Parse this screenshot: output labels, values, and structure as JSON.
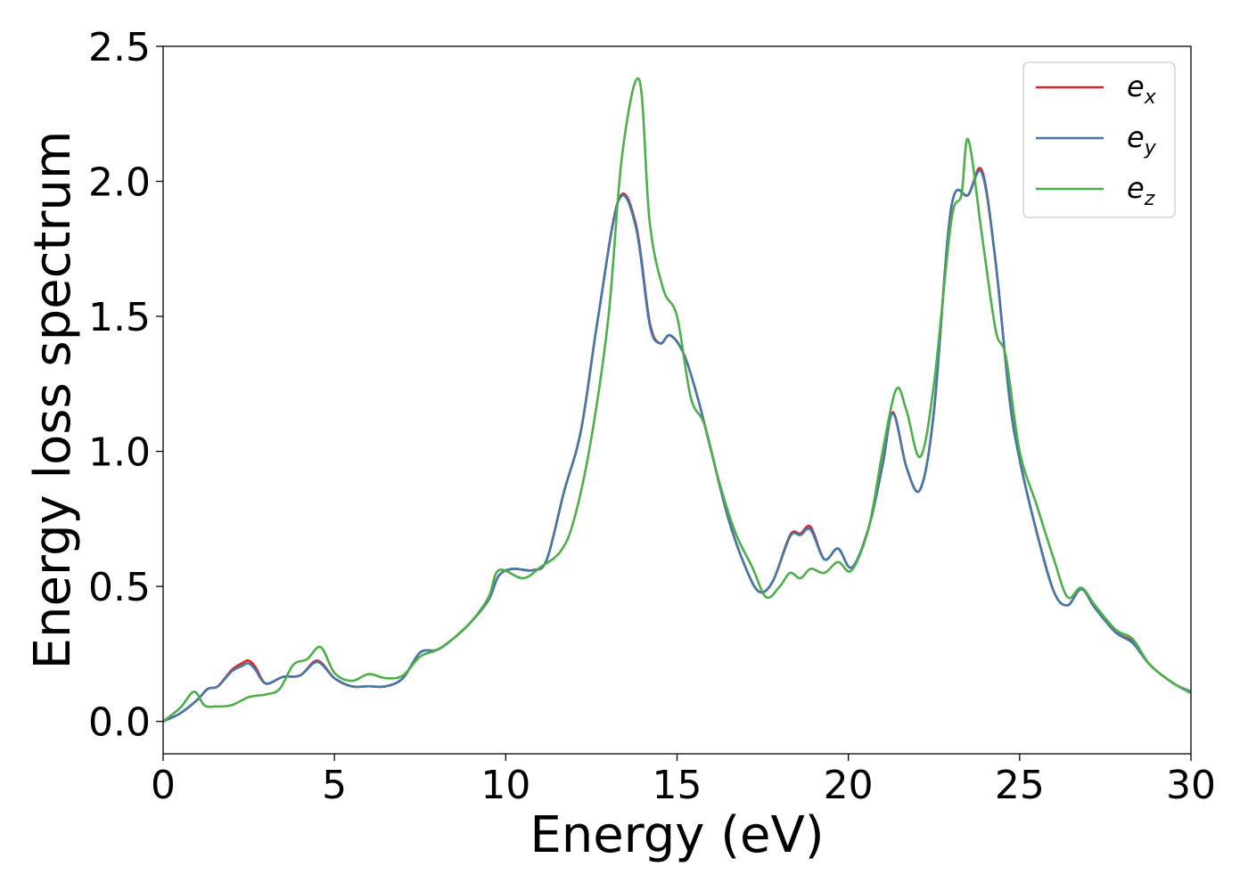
{
  "chart_data": {
    "type": "line",
    "xlabel": "Energy (eV)",
    "ylabel": "Energy loss spectrum",
    "xlim": [
      0,
      30
    ],
    "ylim": [
      -0.12,
      2.5
    ],
    "xticks": [
      0,
      5,
      10,
      15,
      20,
      25,
      30
    ],
    "xtick_labels": [
      "0",
      "5",
      "10",
      "15",
      "20",
      "25",
      "30"
    ],
    "yticks": [
      0.0,
      0.5,
      1.0,
      1.5,
      2.0,
      2.5
    ],
    "ytick_labels": [
      "0.0",
      "0.5",
      "1.0",
      "1.5",
      "2.0",
      "2.5"
    ],
    "grid": false,
    "legend_position": "top-right",
    "series": [
      {
        "name": "e",
        "subscript": "x",
        "color": "#d62728",
        "points": [
          [
            0,
            0
          ],
          [
            0.5,
            0.03
          ],
          [
            1,
            0.08
          ],
          [
            1.3,
            0.12
          ],
          [
            1.6,
            0.13
          ],
          [
            2,
            0.19
          ],
          [
            2.3,
            0.215
          ],
          [
            2.5,
            0.225
          ],
          [
            2.7,
            0.2
          ],
          [
            3,
            0.14
          ],
          [
            3.5,
            0.165
          ],
          [
            4,
            0.17
          ],
          [
            4.5,
            0.225
          ],
          [
            5,
            0.16
          ],
          [
            5.5,
            0.13
          ],
          [
            6,
            0.13
          ],
          [
            6.5,
            0.13
          ],
          [
            7,
            0.16
          ],
          [
            7.5,
            0.255
          ],
          [
            8,
            0.265
          ],
          [
            8.5,
            0.31
          ],
          [
            9,
            0.37
          ],
          [
            9.5,
            0.45
          ],
          [
            9.8,
            0.54
          ],
          [
            10.2,
            0.565
          ],
          [
            10.8,
            0.56
          ],
          [
            11.2,
            0.6
          ],
          [
            11.7,
            0.85
          ],
          [
            12.2,
            1.08
          ],
          [
            12.7,
            1.5
          ],
          [
            13.3,
            1.935
          ],
          [
            13.8,
            1.84
          ],
          [
            14.2,
            1.48
          ],
          [
            14.5,
            1.4
          ],
          [
            14.8,
            1.43
          ],
          [
            15.2,
            1.36
          ],
          [
            15.6,
            1.2
          ],
          [
            16,
            1.0
          ],
          [
            16.5,
            0.75
          ],
          [
            17,
            0.57
          ],
          [
            17.4,
            0.48
          ],
          [
            17.8,
            0.52
          ],
          [
            18.3,
            0.69
          ],
          [
            18.6,
            0.695
          ],
          [
            18.9,
            0.72
          ],
          [
            19.3,
            0.6
          ],
          [
            19.7,
            0.64
          ],
          [
            20.1,
            0.57
          ],
          [
            20.6,
            0.72
          ],
          [
            21,
            0.95
          ],
          [
            21.3,
            1.145
          ],
          [
            21.7,
            0.94
          ],
          [
            22.1,
            0.86
          ],
          [
            22.5,
            1.15
          ],
          [
            23,
            1.9
          ],
          [
            23.5,
            1.95
          ],
          [
            23.9,
            2.04
          ],
          [
            24.3,
            1.7
          ],
          [
            24.7,
            1.2
          ],
          [
            25,
            0.97
          ],
          [
            25.5,
            0.7
          ],
          [
            26,
            0.48
          ],
          [
            26.4,
            0.43
          ],
          [
            26.8,
            0.49
          ],
          [
            27.2,
            0.42
          ],
          [
            27.8,
            0.33
          ],
          [
            28.3,
            0.295
          ],
          [
            28.8,
            0.21
          ],
          [
            29.5,
            0.14
          ],
          [
            30,
            0.11
          ]
        ]
      },
      {
        "name": "e",
        "subscript": "y",
        "color": "#4477aa",
        "points": [
          [
            0,
            0
          ],
          [
            0.5,
            0.03
          ],
          [
            1,
            0.08
          ],
          [
            1.3,
            0.12
          ],
          [
            1.6,
            0.13
          ],
          [
            2,
            0.185
          ],
          [
            2.3,
            0.205
          ],
          [
            2.5,
            0.215
          ],
          [
            2.7,
            0.19
          ],
          [
            3,
            0.14
          ],
          [
            3.5,
            0.165
          ],
          [
            4,
            0.17
          ],
          [
            4.5,
            0.22
          ],
          [
            5,
            0.16
          ],
          [
            5.5,
            0.13
          ],
          [
            6,
            0.13
          ],
          [
            6.5,
            0.13
          ],
          [
            7,
            0.16
          ],
          [
            7.5,
            0.255
          ],
          [
            8,
            0.265
          ],
          [
            8.5,
            0.31
          ],
          [
            9,
            0.37
          ],
          [
            9.5,
            0.45
          ],
          [
            9.8,
            0.54
          ],
          [
            10.2,
            0.565
          ],
          [
            10.8,
            0.56
          ],
          [
            11.2,
            0.6
          ],
          [
            11.7,
            0.85
          ],
          [
            12.2,
            1.08
          ],
          [
            12.7,
            1.5
          ],
          [
            13.3,
            1.93
          ],
          [
            13.8,
            1.83
          ],
          [
            14.2,
            1.47
          ],
          [
            14.5,
            1.4
          ],
          [
            14.8,
            1.43
          ],
          [
            15.2,
            1.36
          ],
          [
            15.6,
            1.2
          ],
          [
            16,
            1.0
          ],
          [
            16.5,
            0.75
          ],
          [
            17,
            0.57
          ],
          [
            17.4,
            0.48
          ],
          [
            17.8,
            0.52
          ],
          [
            18.3,
            0.685
          ],
          [
            18.6,
            0.69
          ],
          [
            18.9,
            0.71
          ],
          [
            19.3,
            0.6
          ],
          [
            19.7,
            0.64
          ],
          [
            20.1,
            0.57
          ],
          [
            20.6,
            0.72
          ],
          [
            21,
            0.95
          ],
          [
            21.3,
            1.14
          ],
          [
            21.7,
            0.94
          ],
          [
            22.1,
            0.86
          ],
          [
            22.5,
            1.15
          ],
          [
            23,
            1.9
          ],
          [
            23.5,
            1.95
          ],
          [
            23.9,
            2.03
          ],
          [
            24.3,
            1.7
          ],
          [
            24.7,
            1.2
          ],
          [
            25,
            0.97
          ],
          [
            25.5,
            0.7
          ],
          [
            26,
            0.48
          ],
          [
            26.4,
            0.43
          ],
          [
            26.8,
            0.49
          ],
          [
            27.2,
            0.42
          ],
          [
            27.8,
            0.33
          ],
          [
            28.3,
            0.29
          ],
          [
            28.8,
            0.21
          ],
          [
            29.5,
            0.14
          ],
          [
            30,
            0.11
          ]
        ]
      },
      {
        "name": "e",
        "subscript": "z",
        "color": "#4daf4a",
        "points": [
          [
            0,
            0
          ],
          [
            0.5,
            0.05
          ],
          [
            0.9,
            0.11
          ],
          [
            1.2,
            0.06
          ],
          [
            1.5,
            0.055
          ],
          [
            2,
            0.06
          ],
          [
            2.5,
            0.09
          ],
          [
            3,
            0.1
          ],
          [
            3.4,
            0.12
          ],
          [
            3.8,
            0.21
          ],
          [
            4.2,
            0.23
          ],
          [
            4.6,
            0.275
          ],
          [
            5,
            0.18
          ],
          [
            5.5,
            0.15
          ],
          [
            6,
            0.175
          ],
          [
            6.5,
            0.16
          ],
          [
            7,
            0.17
          ],
          [
            7.5,
            0.24
          ],
          [
            8,
            0.265
          ],
          [
            8.5,
            0.31
          ],
          [
            9,
            0.37
          ],
          [
            9.5,
            0.46
          ],
          [
            9.8,
            0.56
          ],
          [
            10.5,
            0.53
          ],
          [
            11,
            0.57
          ],
          [
            11.6,
            0.63
          ],
          [
            12,
            0.75
          ],
          [
            12.5,
            1.05
          ],
          [
            13,
            1.5
          ],
          [
            13.4,
            2.1
          ],
          [
            13.9,
            2.375
          ],
          [
            14.2,
            1.85
          ],
          [
            14.6,
            1.6
          ],
          [
            15,
            1.5
          ],
          [
            15.4,
            1.2
          ],
          [
            15.8,
            1.1
          ],
          [
            16.2,
            0.9
          ],
          [
            16.7,
            0.7
          ],
          [
            17.2,
            0.57
          ],
          [
            17.6,
            0.46
          ],
          [
            18,
            0.5
          ],
          [
            18.3,
            0.55
          ],
          [
            18.6,
            0.53
          ],
          [
            18.9,
            0.565
          ],
          [
            19.3,
            0.55
          ],
          [
            19.7,
            0.59
          ],
          [
            20.1,
            0.56
          ],
          [
            20.6,
            0.72
          ],
          [
            21,
            1.0
          ],
          [
            21.4,
            1.23
          ],
          [
            21.7,
            1.15
          ],
          [
            22.1,
            0.98
          ],
          [
            22.5,
            1.25
          ],
          [
            23,
            1.85
          ],
          [
            23.3,
            1.95
          ],
          [
            23.5,
            2.155
          ],
          [
            23.9,
            1.8
          ],
          [
            24.3,
            1.45
          ],
          [
            24.6,
            1.35
          ],
          [
            25,
            1.0
          ],
          [
            25.5,
            0.8
          ],
          [
            26,
            0.6
          ],
          [
            26.4,
            0.46
          ],
          [
            26.8,
            0.495
          ],
          [
            27.2,
            0.43
          ],
          [
            27.8,
            0.34
          ],
          [
            28.3,
            0.305
          ],
          [
            28.8,
            0.21
          ],
          [
            29.5,
            0.14
          ],
          [
            30,
            0.105
          ]
        ]
      }
    ]
  }
}
